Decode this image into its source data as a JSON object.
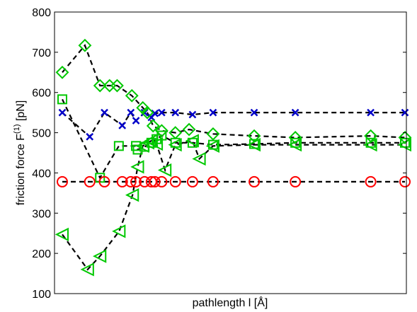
{
  "chart_data": {
    "type": "line",
    "xlabel": "pathlength l [Å]",
    "ylabel_main": "friction force F",
    "ylabel_sup": "(1)",
    "ylabel_unit": " [pN]",
    "ylim": [
      100,
      800
    ],
    "xlim": [
      0,
      1
    ],
    "yticks": [
      "100",
      "200",
      "300",
      "400",
      "500",
      "600",
      "700",
      "800"
    ],
    "yticks_values": [
      100,
      200,
      300,
      400,
      500,
      600,
      700,
      800
    ],
    "x_ticklabels_shown": false,
    "grid": false,
    "line_color": "#000000",
    "series": [
      {
        "marker": "cross",
        "color": "#0000c8",
        "x": [
          0.0,
          0.08,
          0.123,
          0.175,
          0.2,
          0.215,
          0.24,
          0.26,
          0.27,
          0.29,
          0.33,
          0.38,
          0.44,
          0.56,
          0.68,
          0.9,
          1.0
        ],
        "y": [
          550,
          490,
          550,
          518,
          550,
          530,
          550,
          538,
          548,
          550,
          550,
          545,
          550,
          550,
          550,
          550,
          550
        ]
      },
      {
        "marker": "diamond",
        "color": "#00c800",
        "x": [
          0.0,
          0.066,
          0.11,
          0.138,
          0.16,
          0.203,
          0.235,
          0.248,
          0.265,
          0.29,
          0.33,
          0.37,
          0.44,
          0.56,
          0.68,
          0.9,
          1.0
        ],
        "y": [
          650,
          717,
          617,
          617,
          617,
          592,
          562,
          550,
          517,
          505,
          500,
          508,
          497,
          492,
          488,
          492,
          488
        ]
      },
      {
        "marker": "square",
        "color": "#00c800",
        "x": [
          0.0,
          0.11,
          0.165,
          0.215,
          0.22,
          0.24,
          0.26,
          0.275,
          0.29,
          0.33,
          0.38,
          0.44,
          0.56,
          0.68,
          0.9,
          1.0
        ],
        "y": [
          583,
          388,
          467,
          467,
          458,
          465,
          475,
          484,
          493,
          475,
          475,
          470,
          472,
          475,
          475,
          475
        ]
      },
      {
        "marker": "triangle-left",
        "color": "#00c800",
        "x": [
          0.0,
          0.074,
          0.11,
          0.166,
          0.205,
          0.22,
          0.235,
          0.25,
          0.26,
          0.275,
          0.3,
          0.33,
          0.38,
          0.4,
          0.44,
          0.56,
          0.68,
          0.9,
          1.0
        ],
        "y": [
          247,
          160,
          193,
          255,
          345,
          415,
          467,
          475,
          480,
          472,
          407,
          470,
          480,
          435,
          467,
          470,
          470,
          470,
          470
        ]
      },
      {
        "marker": "circle",
        "color": "#ff0000",
        "x": [
          0.0,
          0.08,
          0.123,
          0.175,
          0.2,
          0.215,
          0.24,
          0.26,
          0.27,
          0.29,
          0.33,
          0.38,
          0.44,
          0.56,
          0.68,
          0.9,
          1.0
        ],
        "y": [
          378,
          378,
          378,
          378,
          378,
          378,
          378,
          378,
          378,
          378,
          378,
          378,
          378,
          378,
          378,
          378,
          378
        ]
      }
    ]
  }
}
